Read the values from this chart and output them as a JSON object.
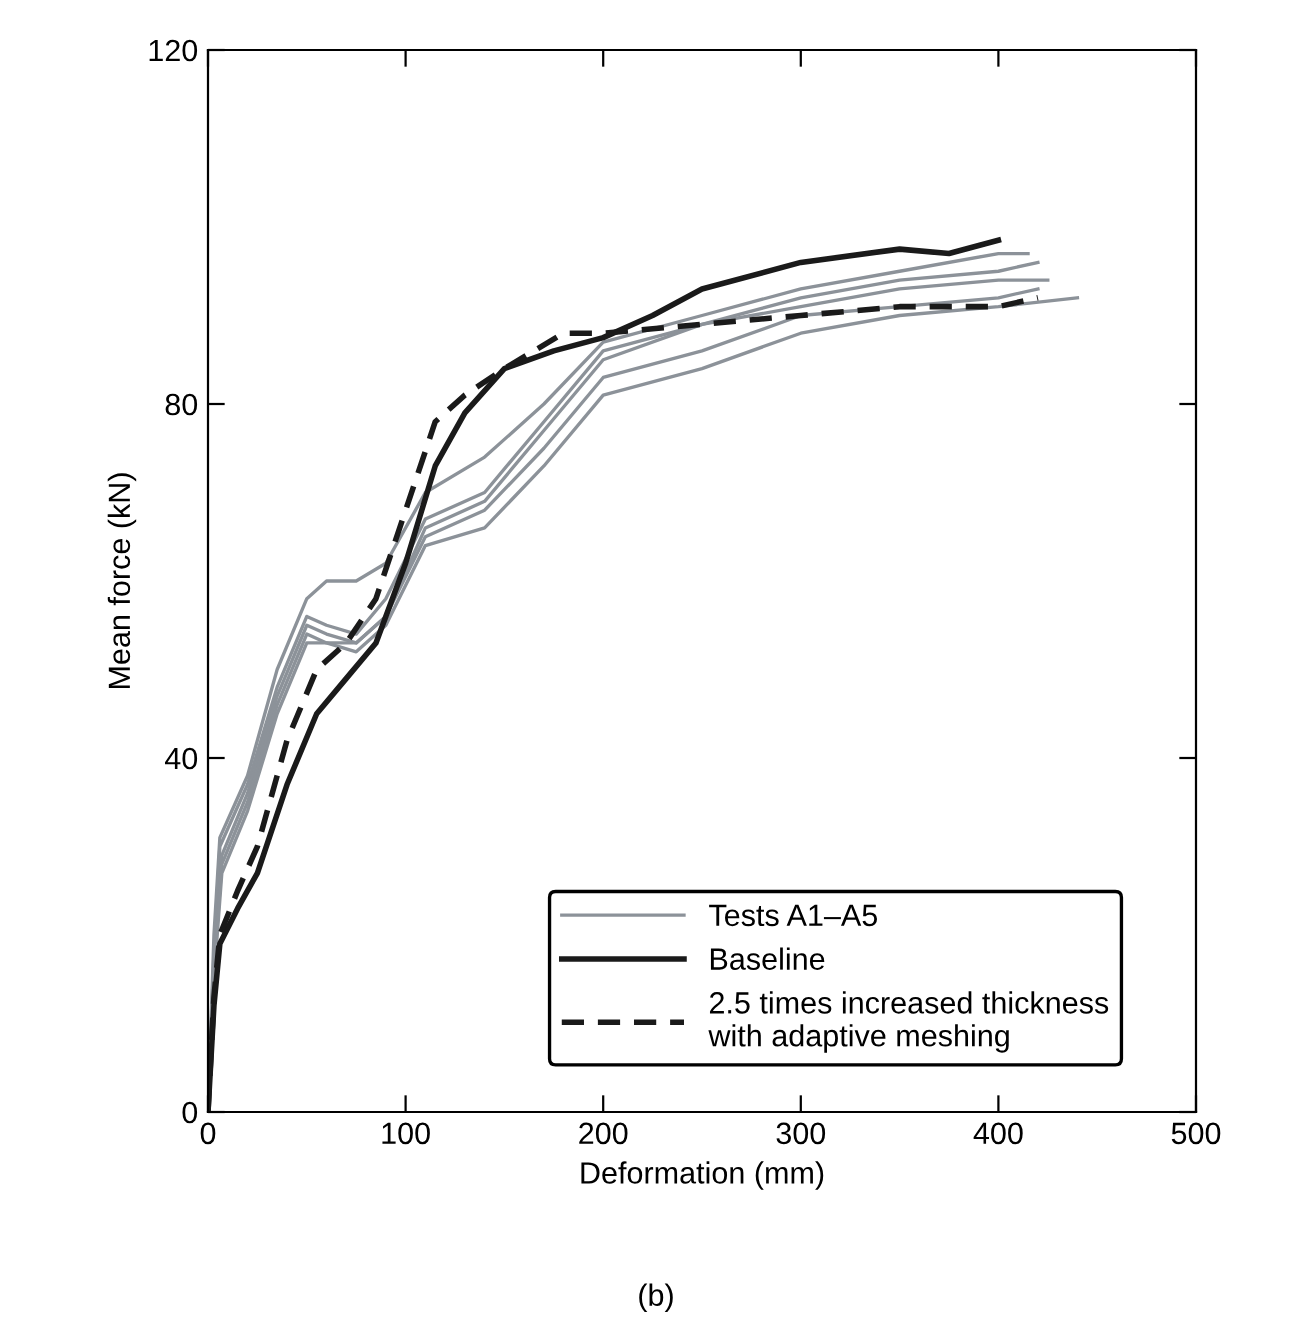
{
  "chart_data": {
    "type": "line",
    "xlabel": "Deformation (mm)",
    "ylabel": "Mean force (kN)",
    "xlim": [
      0,
      500
    ],
    "ylim": [
      0,
      120
    ],
    "xticks": [
      0,
      100,
      200,
      300,
      400,
      500
    ],
    "yticks": [
      0,
      40,
      80,
      120
    ],
    "grid": false,
    "legend": "bottom right",
    "marker": "none",
    "annotations": [
      "(b)"
    ],
    "series": [
      {
        "name": "Tests A1–A5",
        "color": "#8c9299",
        "line_style": "solid",
        "x": [
          0,
          3,
          6,
          20,
          35,
          50,
          60,
          75,
          90,
          110,
          140,
          170,
          200,
          250,
          300,
          350,
          400,
          415
        ],
        "values": [
          0,
          20,
          31,
          38,
          50,
          58,
          60,
          60,
          62,
          70,
          74,
          80,
          87,
          90,
          93,
          95,
          97,
          97
        ]
      },
      {
        "color": "#8c9299",
        "line_style": "solid",
        "x": [
          0,
          3,
          6,
          20,
          35,
          50,
          60,
          75,
          90,
          110,
          140,
          170,
          200,
          250,
          300,
          350,
          400,
          420
        ],
        "values": [
          0,
          18,
          30,
          37,
          48,
          56,
          55,
          54,
          58,
          67,
          70,
          78,
          86,
          89,
          92,
          94,
          95,
          96
        ]
      },
      {
        "color": "#8c9299",
        "line_style": "solid",
        "x": [
          0,
          3,
          7,
          20,
          35,
          50,
          60,
          75,
          90,
          110,
          140,
          170,
          200,
          250,
          300,
          350,
          400,
          425
        ],
        "values": [
          0,
          17,
          29,
          36,
          47,
          55,
          54,
          53,
          56,
          66,
          69,
          77,
          85,
          89,
          91,
          93,
          94,
          94
        ]
      },
      {
        "color": "#8c9299",
        "line_style": "solid",
        "x": [
          0,
          3,
          7,
          20,
          35,
          50,
          60,
          75,
          90,
          110,
          140,
          170,
          200,
          250,
          300,
          350,
          400,
          420
        ],
        "values": [
          0,
          16,
          28,
          35,
          46,
          54,
          53,
          53,
          56,
          65,
          68,
          75,
          83,
          86,
          90,
          91,
          92,
          93
        ]
      },
      {
        "color": "#8c9299",
        "line_style": "solid",
        "x": [
          0,
          3,
          7,
          20,
          35,
          50,
          60,
          75,
          90,
          110,
          140,
          170,
          200,
          250,
          300,
          350,
          400,
          440
        ],
        "values": [
          0,
          15,
          27,
          34,
          45,
          53,
          53,
          52,
          55,
          64,
          66,
          73,
          81,
          84,
          88,
          90,
          91,
          92
        ]
      },
      {
        "name": "Baseline",
        "color": "#1a1a1a",
        "line_style": "solid",
        "x": [
          0,
          3,
          6,
          15,
          25,
          40,
          55,
          70,
          85,
          100,
          115,
          130,
          150,
          175,
          200,
          225,
          250,
          300,
          350,
          375,
          400
        ],
        "values": [
          0,
          12,
          19,
          23,
          27,
          37,
          45,
          49,
          53,
          62,
          73,
          79,
          84,
          86,
          87.5,
          90,
          93,
          96,
          97.5,
          97,
          98.5
        ]
      },
      {
        "name": "2.5 times increased thickness\nwith adaptive meshing",
        "color": "#1a1a1a",
        "line_style": "dashed",
        "x": [
          0,
          3,
          6,
          15,
          25,
          40,
          55,
          70,
          85,
          100,
          115,
          130,
          150,
          180,
          200,
          250,
          300,
          350,
          400,
          420
        ],
        "values": [
          0,
          13,
          20,
          25,
          30,
          42,
          50,
          53,
          58,
          68,
          78,
          81,
          84,
          88,
          88,
          89,
          90,
          91,
          91,
          92
        ]
      }
    ]
  }
}
